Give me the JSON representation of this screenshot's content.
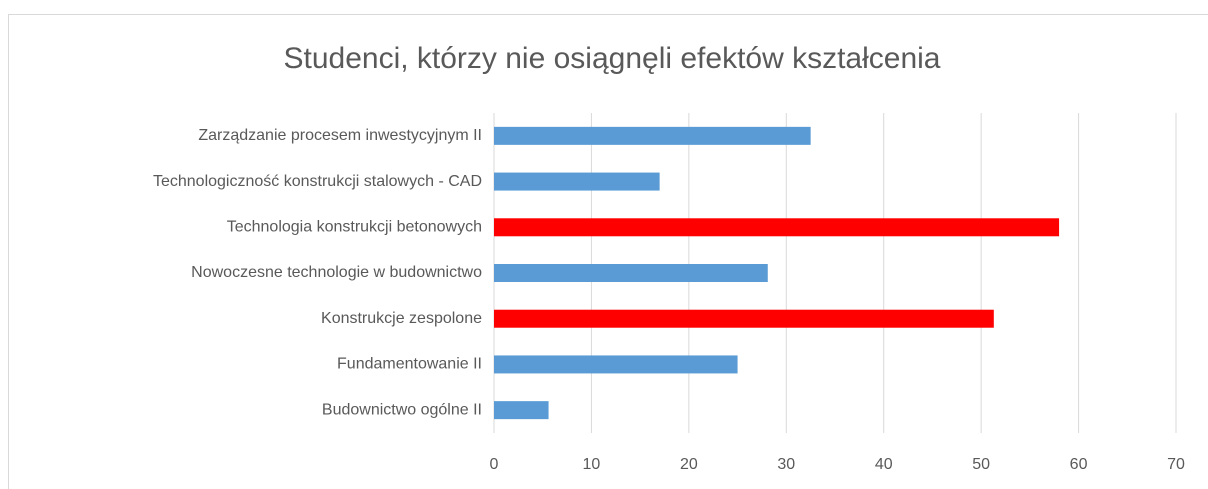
{
  "chart_data": {
    "type": "barh",
    "title": "Studenci, którzy nie osiągnęli efektów kształcenia",
    "categories": [
      "Zarządzanie procesem inwestycyjnym II",
      "Technologiczność konstrukcji stalowych - CAD",
      "Technologia konstrukcji betonowych",
      "Nowoczesne technologie w budownictwo",
      "Konstrukcje zespolone",
      "Fundamentowanie II",
      "Budownictwo ogólne II"
    ],
    "values": [
      32.5,
      17,
      58,
      28.1,
      51.3,
      25,
      5.6
    ],
    "colors": [
      "#5b9bd5",
      "#5b9bd5",
      "#ff0000",
      "#5b9bd5",
      "#ff0000",
      "#5b9bd5",
      "#5b9bd5"
    ],
    "xlim": [
      0,
      70
    ],
    "xticks": [
      0,
      10,
      20,
      30,
      40,
      50,
      60,
      70
    ],
    "grid": true
  }
}
